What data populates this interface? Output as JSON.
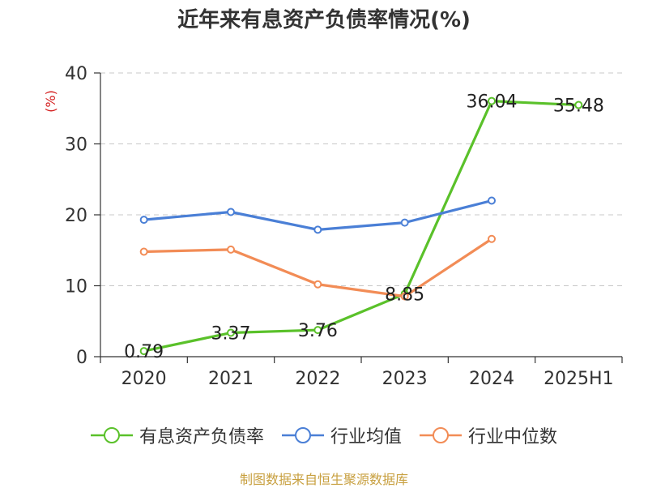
{
  "chart_data": {
    "type": "line",
    "title": "近年来有息资产负债率情况(%)",
    "ylabel": "(%)",
    "xlabel": "",
    "categories": [
      "2020",
      "2021",
      "2022",
      "2023",
      "2024",
      "2025H1"
    ],
    "ylim": [
      0,
      40
    ],
    "yticks": [
      0,
      10,
      20,
      30,
      40
    ],
    "grid": true,
    "legend_position": "bottom",
    "series": [
      {
        "name": "有息资产负债率",
        "color": "#5ac12a",
        "values": [
          0.79,
          3.37,
          3.76,
          8.85,
          36.04,
          35.48
        ],
        "labels": [
          "0.79",
          "3.37",
          "3.76",
          "8.85",
          "36.04",
          "35.48"
        ],
        "show_labels": true
      },
      {
        "name": "行业均值",
        "color": "#4a7fd6",
        "values": [
          19.3,
          20.4,
          17.9,
          18.9,
          22.0,
          null
        ],
        "show_labels": false
      },
      {
        "name": "行业中位数",
        "color": "#f28c56",
        "values": [
          14.8,
          15.1,
          10.2,
          8.5,
          16.6,
          null
        ],
        "show_labels": false
      }
    ],
    "source": "制图数据来自恒生聚源数据库"
  }
}
